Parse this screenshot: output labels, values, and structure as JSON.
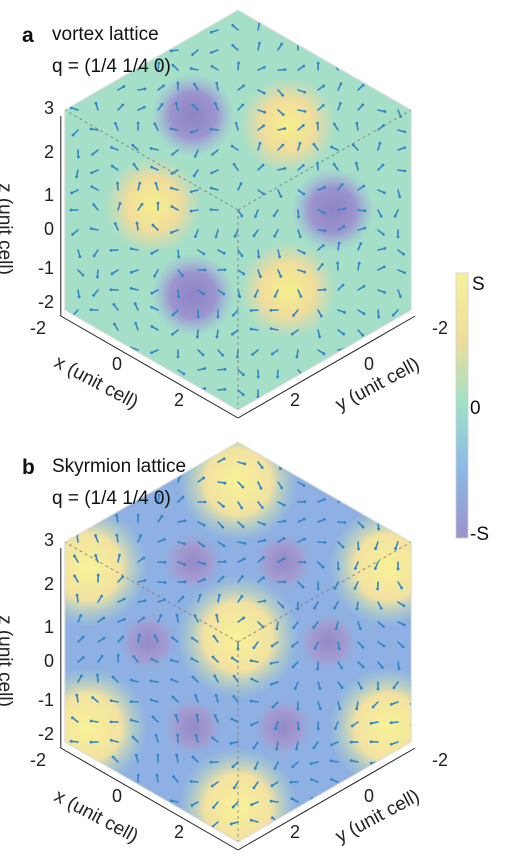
{
  "panels": [
    {
      "letter": "a",
      "title": "vortex lattice",
      "q": "q = (1/4 1/4 0)",
      "z_ticks": [
        "3",
        "2",
        "1",
        "0",
        "-1",
        "-2"
      ],
      "x_ticks": [
        "-2",
        "0",
        "2"
      ],
      "y_ticks": [
        "-2",
        "0",
        "2"
      ],
      "z_label": "z (unit cell)",
      "x_label": "x (unit cell)",
      "y_label": "y (unit cell)"
    },
    {
      "letter": "b",
      "title": "Skyrmion lattice",
      "q": "q = (1/4 1/4 0)",
      "z_ticks": [
        "3",
        "2",
        "1",
        "0",
        "-1",
        "-2"
      ],
      "x_ticks": [
        "-2",
        "0",
        "2"
      ],
      "y_ticks": [
        "-2",
        "0",
        "2"
      ],
      "z_label": "z (unit cell)",
      "x_label": "x (unit cell)",
      "y_label": "y (unit cell)"
    }
  ],
  "colorbar": {
    "labels": [
      "S",
      "0",
      "-S"
    ],
    "colors": [
      "#f5f29a",
      "#f0dd9a",
      "#9ee0c8",
      "#8ab7e6",
      "#9b92c8"
    ]
  },
  "colors": {
    "yellow": "#f2e99c",
    "teal": "#a6dfc8",
    "blue": "#8fb0e2",
    "purple": "#a39ad0",
    "arrow": "#2f86c8"
  }
}
